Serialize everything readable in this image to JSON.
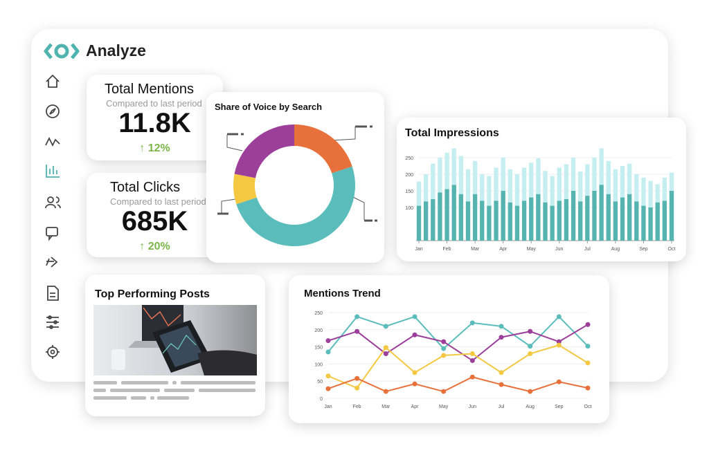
{
  "app": {
    "title": "Analyze"
  },
  "stats": [
    {
      "title": "Total Mentions",
      "subtitle": "Compared to last period",
      "value": "11.8K",
      "change": "↑ 12%"
    },
    {
      "title": "Total Clicks",
      "subtitle": "Compared to last period",
      "value": "685K",
      "change": "↑ 20%"
    }
  ],
  "posts": {
    "title": "Top Performing Posts"
  },
  "chart_data": [
    {
      "type": "pie",
      "title": "Share of Voice by Search",
      "donut": true,
      "values": [
        20,
        50,
        8,
        22
      ],
      "colors": [
        "#e8703a",
        "#5bbcbc",
        "#f5c842",
        "#9c3f9a"
      ]
    },
    {
      "type": "bar",
      "title": "Total Impressions",
      "overlap": true,
      "categories": [
        "Jan",
        null,
        null,
        null,
        "Feb",
        null,
        null,
        null,
        "Mar",
        null,
        null,
        null,
        "Apr",
        null,
        null,
        null,
        "May",
        null,
        null,
        null,
        "Jun",
        null,
        null,
        null,
        "Jul",
        null,
        null,
        null,
        "Aug",
        null,
        null,
        null,
        "Sep",
        null,
        null,
        null,
        "Oct"
      ],
      "series": [
        {
          "color": "#c5eef0",
          "values": [
            178,
            200,
            232,
            250,
            265,
            278,
            255,
            215,
            240,
            200,
            195,
            220,
            250,
            215,
            200,
            220,
            235,
            248,
            210,
            195,
            220,
            230,
            250,
            208,
            230,
            250,
            278,
            240,
            215,
            225,
            232,
            200,
            190,
            180,
            170,
            190,
            205
          ]
        },
        {
          "color": "#56b4b0",
          "values": [
            105,
            118,
            125,
            145,
            155,
            168,
            140,
            118,
            140,
            120,
            105,
            120,
            150,
            115,
            105,
            120,
            130,
            140,
            115,
            105,
            120,
            125,
            150,
            118,
            135,
            150,
            168,
            140,
            118,
            130,
            140,
            118,
            105,
            100,
            115,
            120,
            150
          ]
        }
      ],
      "ylim": [
        0,
        280
      ],
      "yticks": [
        100,
        150,
        200,
        250
      ],
      "grid": true
    },
    {
      "type": "line",
      "title": "Mentions Trend",
      "categories": [
        "Jan",
        "Feb",
        "Mar",
        "Apr",
        "May",
        "Jun",
        "Jul",
        "Aug",
        "Sep",
        "Oct"
      ],
      "series": [
        {
          "color": "#5bbcbc",
          "values": [
            135,
            238,
            210,
            238,
            145,
            220,
            210,
            152,
            238,
            152
          ]
        },
        {
          "color": "#9c3f9a",
          "values": [
            168,
            195,
            130,
            185,
            165,
            110,
            178,
            195,
            165,
            215
          ]
        },
        {
          "color": "#f5c842",
          "values": [
            65,
            30,
            148,
            75,
            125,
            130,
            75,
            130,
            155,
            103
          ]
        },
        {
          "color": "#e8703a",
          "values": [
            28,
            58,
            20,
            42,
            20,
            62,
            40,
            20,
            48,
            30
          ]
        }
      ],
      "ylim": [
        0,
        250
      ],
      "yticks": [
        0,
        50,
        100,
        150,
        200,
        250
      ],
      "grid": true
    }
  ]
}
